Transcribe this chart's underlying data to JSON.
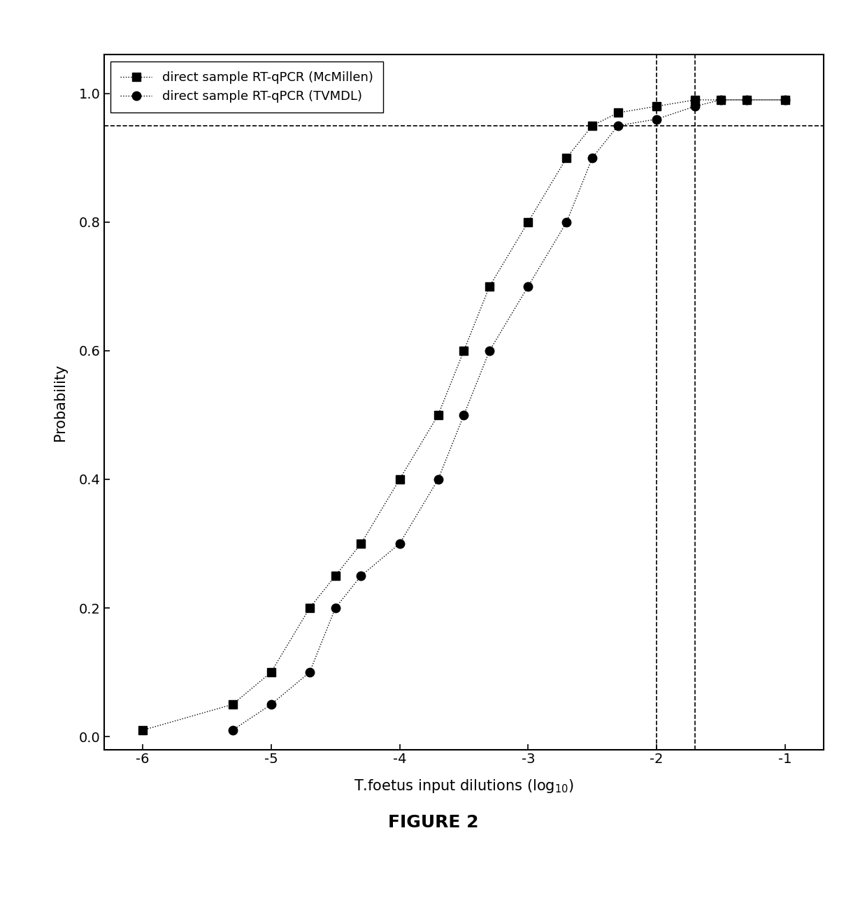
{
  "series1_label": "direct sample RT-qPCR (McMillen)",
  "series2_label": "direct sample RT-qPCR (TVMDL)",
  "series1_x": [
    -6.0,
    -5.3,
    -5.0,
    -4.7,
    -4.5,
    -4.3,
    -4.0,
    -3.7,
    -3.5,
    -3.3,
    -3.0,
    -2.7,
    -2.5,
    -2.3,
    -2.0,
    -1.7,
    -1.5,
    -1.3,
    -1.0
  ],
  "series1_y": [
    0.01,
    0.05,
    0.1,
    0.2,
    0.25,
    0.3,
    0.4,
    0.5,
    0.6,
    0.7,
    0.8,
    0.9,
    0.95,
    0.97,
    0.98,
    0.99,
    0.99,
    0.99,
    0.99
  ],
  "series2_x": [
    -5.3,
    -5.0,
    -4.7,
    -4.5,
    -4.3,
    -4.0,
    -3.7,
    -3.5,
    -3.3,
    -3.0,
    -2.7,
    -2.5,
    -2.3,
    -2.0,
    -1.7,
    -1.5,
    -1.3,
    -1.0
  ],
  "series2_y": [
    0.01,
    0.05,
    0.1,
    0.2,
    0.25,
    0.3,
    0.4,
    0.5,
    0.6,
    0.7,
    0.8,
    0.9,
    0.95,
    0.96,
    0.98,
    0.99,
    0.99,
    0.99
  ],
  "hline_y": 0.95,
  "vline1_x": -2.0,
  "vline2_x": -1.7,
  "xlim": [
    -6.3,
    -0.7
  ],
  "ylim": [
    -0.02,
    1.06
  ],
  "xlabel": "T.foetus input dilutions (log$_{10}$)",
  "ylabel": "Probability",
  "xticks": [
    -6,
    -5,
    -4,
    -3,
    -2,
    -1
  ],
  "yticks": [
    0.0,
    0.2,
    0.4,
    0.6,
    0.8,
    1.0
  ],
  "figure_title": "FIGURE 2",
  "line_color": "#000000",
  "line_style": "dotted",
  "marker1": "s",
  "marker2": "o",
  "marker_size": 9,
  "marker_color": "#000000",
  "hline_style": "--",
  "vline_style": "--",
  "legend_loc": "upper left",
  "title_fontsize": 18,
  "axis_fontsize": 15,
  "tick_fontsize": 14,
  "legend_fontsize": 13
}
